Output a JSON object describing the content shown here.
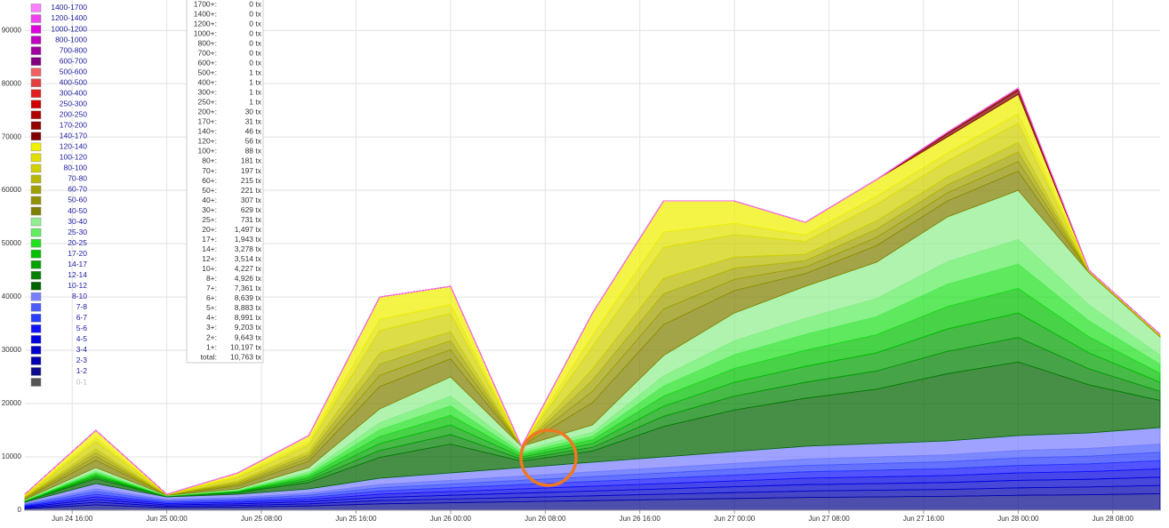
{
  "chart_data": {
    "type": "stacked_area",
    "x": [
      "Jun 24 12:00",
      "Jun 24 18:00",
      "Jun 25 00:00",
      "Jun 25 06:00",
      "Jun 25 12:00",
      "Jun 25 18:00",
      "Jun 26 00:00",
      "Jun 26 06:00",
      "Jun 26 12:00",
      "Jun 26 18:00",
      "Jun 27 00:00",
      "Jun 27 06:00",
      "Jun 27 12:00",
      "Jun 27 18:00",
      "Jun 28 00:00",
      "Jun 28 06:00",
      "Jun 28 12:00"
    ],
    "xlim": [
      "Jun 24 12:00",
      "Jun 28 12:00"
    ],
    "xticks": [
      "Jun 24 16:00",
      "Jun 25 00:00",
      "Jun 25 08:00",
      "Jun 25 16:00",
      "Jun 26 00:00",
      "Jun 26 08:00",
      "Jun 26 16:00",
      "Jun 27 00:00",
      "Jun 27 08:00",
      "Jun 27 16:00",
      "Jun 28 00:00",
      "Jun 28 08:00"
    ],
    "ylim": [
      0,
      95700
    ],
    "yticks": [
      0,
      10000,
      20000,
      30000,
      40000,
      50000,
      60000,
      70000,
      80000,
      90000
    ],
    "grid": true,
    "series": [
      {
        "name": "0-1",
        "color": "#555555",
        "values": [
          0,
          0,
          0,
          0,
          0,
          0,
          0,
          0,
          0,
          0,
          0,
          0,
          0,
          0,
          0,
          0,
          0
        ]
      },
      {
        "name": "1-2",
        "color": "#0a0a8c",
        "values": [
          300,
          1000,
          500,
          600,
          800,
          1200,
          1400,
          1600,
          1800,
          2000,
          2200,
          2400,
          2500,
          2600,
          2800,
          2900,
          3100
        ]
      },
      {
        "name": "2-3",
        "color": "#0000b0",
        "values": [
          150,
          500,
          250,
          300,
          400,
          600,
          700,
          800,
          900,
          1000,
          1100,
          1200,
          1250,
          1300,
          1400,
          1450,
          1550
        ]
      },
      {
        "name": "3-4",
        "color": "#0000cc",
        "values": [
          150,
          500,
          250,
          300,
          400,
          600,
          700,
          800,
          900,
          1000,
          1100,
          1200,
          1250,
          1300,
          1400,
          1450,
          1550
        ]
      },
      {
        "name": "4-5",
        "color": "#0000e0",
        "values": [
          150,
          500,
          250,
          300,
          400,
          600,
          700,
          800,
          900,
          1000,
          1100,
          1200,
          1250,
          1300,
          1400,
          1450,
          1550
        ]
      },
      {
        "name": "5-6",
        "color": "#1010ff",
        "values": [
          150,
          500,
          250,
          300,
          400,
          600,
          700,
          800,
          900,
          1000,
          1100,
          1200,
          1250,
          1300,
          1400,
          1450,
          1550
        ]
      },
      {
        "name": "6-7",
        "color": "#2a3cff",
        "values": [
          150,
          500,
          250,
          300,
          400,
          600,
          700,
          800,
          900,
          1000,
          1100,
          1200,
          1250,
          1300,
          1400,
          1450,
          1550
        ]
      },
      {
        "name": "7-8",
        "color": "#4a5cff",
        "values": [
          150,
          500,
          250,
          300,
          400,
          600,
          700,
          800,
          900,
          1000,
          1100,
          1200,
          1250,
          1300,
          1400,
          1450,
          1550
        ]
      },
      {
        "name": "8-10",
        "color": "#7a80ff",
        "values": [
          300,
          1000,
          500,
          600,
          800,
          1200,
          1400,
          1600,
          1800,
          2000,
          2200,
          2400,
          2500,
          2600,
          2800,
          2900,
          3100
        ]
      },
      {
        "name": "10-12",
        "color": "#006400",
        "values": [
          150,
          900,
          90,
          300,
          1200,
          3900,
          5400,
          1200,
          2100,
          5700,
          7800,
          9000,
          10200,
          12600,
          13800,
          9000,
          5100
        ]
      },
      {
        "name": "12-14",
        "color": "#008000",
        "values": [
          50,
          300,
          30,
          100,
          400,
          1300,
          1800,
          400,
          700,
          1900,
          2600,
          3000,
          3400,
          4200,
          4600,
          3000,
          1700
        ]
      },
      {
        "name": "14-17",
        "color": "#00a000",
        "values": [
          50,
          300,
          30,
          100,
          400,
          1300,
          1800,
          400,
          700,
          1900,
          2600,
          3000,
          3400,
          4200,
          4600,
          3000,
          1700
        ]
      },
      {
        "name": "17-20",
        "color": "#00c000",
        "values": [
          50,
          300,
          30,
          100,
          400,
          1300,
          1800,
          400,
          700,
          1900,
          2600,
          3000,
          3400,
          4200,
          4600,
          3000,
          1700
        ]
      },
      {
        "name": "20-25",
        "color": "#20e020",
        "values": [
          50,
          300,
          30,
          100,
          400,
          1300,
          1800,
          400,
          700,
          1900,
          2600,
          3000,
          3400,
          4200,
          4600,
          3000,
          1700
        ]
      },
      {
        "name": "25-30",
        "color": "#60ee60",
        "values": [
          50,
          300,
          30,
          100,
          400,
          1300,
          1800,
          400,
          700,
          1900,
          2600,
          3000,
          3400,
          4200,
          4600,
          3000,
          1700
        ]
      },
      {
        "name": "30-40",
        "color": "#90ee90",
        "values": [
          100,
          600,
          60,
          200,
          800,
          2600,
          3600,
          800,
          1400,
          3800,
          5200,
          6000,
          6800,
          8400,
          9200,
          6000,
          3400
        ]
      },
      {
        "name": "40-50",
        "color": "#808000",
        "values": [
          200,
          1400,
          40,
          600,
          1200,
          4200,
          3400,
          0,
          4200,
          5800,
          4200,
          2400,
          3100,
          3000,
          3600,
          100,
          100
        ]
      },
      {
        "name": "50-60",
        "color": "#909000",
        "values": [
          100,
          700,
          20,
          300,
          600,
          2100,
          1700,
          0,
          2100,
          2900,
          2100,
          1200,
          1550,
          1500,
          1800,
          50,
          50
        ]
      },
      {
        "name": "60-70",
        "color": "#a0a000",
        "values": [
          100,
          700,
          20,
          300,
          600,
          2100,
          1700,
          0,
          2100,
          2900,
          2100,
          1200,
          1550,
          1500,
          1800,
          50,
          50
        ]
      },
      {
        "name": "70-80",
        "color": "#b8b800",
        "values": [
          100,
          700,
          20,
          300,
          600,
          2100,
          1700,
          0,
          2100,
          2900,
          2100,
          1200,
          1550,
          1500,
          1800,
          50,
          50
        ]
      },
      {
        "name": "80-100",
        "color": "#d0d000",
        "values": [
          200,
          1400,
          40,
          600,
          1200,
          4200,
          3400,
          0,
          4200,
          5800,
          4200,
          2400,
          3100,
          3000,
          3600,
          100,
          100
        ]
      },
      {
        "name": "100-120",
        "color": "#e0e000",
        "values": [
          100,
          700,
          20,
          300,
          600,
          2100,
          1700,
          0,
          2100,
          2900,
          2100,
          1200,
          1550,
          1500,
          1800,
          50,
          50
        ]
      },
      {
        "name": "120-140",
        "color": "#f0f000",
        "values": [
          200,
          1400,
          40,
          600,
          1200,
          4200,
          3400,
          0,
          4200,
          5800,
          4200,
          2400,
          3100,
          3000,
          3600,
          100,
          100
        ]
      },
      {
        "name": "140-170",
        "color": "#800000",
        "values": [
          0,
          0,
          0,
          0,
          0,
          0,
          0,
          0,
          0,
          0,
          0,
          0,
          0,
          600,
          800,
          0,
          0
        ]
      },
      {
        "name": "170-200",
        "color": "#900000",
        "values": [
          0,
          0,
          0,
          0,
          0,
          0,
          0,
          0,
          0,
          0,
          0,
          0,
          0,
          300,
          400,
          0,
          0
        ]
      },
      {
        "name": "200-250",
        "color": "#b00000",
        "values": [
          0,
          0,
          0,
          0,
          0,
          0,
          0,
          0,
          0,
          0,
          0,
          0,
          0,
          0,
          0,
          0,
          0
        ]
      },
      {
        "name": "250-300",
        "color": "#d00000",
        "values": [
          0,
          0,
          0,
          0,
          0,
          0,
          0,
          0,
          0,
          0,
          0,
          0,
          0,
          0,
          0,
          0,
          0
        ]
      },
      {
        "name": "300-400",
        "color": "#e02020",
        "values": [
          0,
          0,
          0,
          0,
          0,
          0,
          0,
          0,
          0,
          0,
          0,
          0,
          0,
          0,
          0,
          0,
          0
        ]
      },
      {
        "name": "400-500",
        "color": "#e04040",
        "values": [
          0,
          0,
          0,
          0,
          0,
          0,
          0,
          0,
          0,
          0,
          0,
          0,
          0,
          0,
          0,
          0,
          0
        ]
      },
      {
        "name": "500-600",
        "color": "#f06060",
        "values": [
          0,
          0,
          0,
          0,
          0,
          0,
          0,
          0,
          0,
          0,
          0,
          0,
          0,
          0,
          0,
          0,
          0
        ]
      },
      {
        "name": "600-700",
        "color": "#800080",
        "values": [
          0,
          0,
          0,
          0,
          0,
          0,
          0,
          0,
          0,
          0,
          0,
          0,
          0,
          0,
          0,
          0,
          0
        ]
      },
      {
        "name": "700-800",
        "color": "#a000a0",
        "values": [
          0,
          0,
          0,
          0,
          0,
          0,
          0,
          0,
          0,
          0,
          0,
          0,
          0,
          0,
          0,
          0,
          0
        ]
      },
      {
        "name": "800-1000",
        "color": "#c000c0",
        "values": [
          0,
          0,
          0,
          0,
          0,
          0,
          0,
          0,
          0,
          0,
          0,
          0,
          0,
          0,
          0,
          0,
          0
        ]
      },
      {
        "name": "1000-1200",
        "color": "#e000e0",
        "values": [
          0,
          0,
          0,
          0,
          0,
          0,
          0,
          0,
          0,
          0,
          0,
          0,
          0,
          0,
          0,
          0,
          0
        ]
      },
      {
        "name": "1200-1400",
        "color": "#f040f0",
        "values": [
          0,
          0,
          0,
          0,
          0,
          0,
          0,
          0,
          0,
          0,
          0,
          0,
          0,
          0,
          0,
          0,
          0
        ]
      },
      {
        "name": "1400-1700",
        "color": "#ff80ff",
        "values": [
          0,
          0,
          0,
          0,
          0,
          0,
          0,
          0,
          0,
          0,
          0,
          0,
          0,
          0,
          0,
          0,
          0
        ]
      }
    ]
  },
  "tooltip": {
    "rows": [
      {
        "label": "1700+:",
        "value": "0 tx"
      },
      {
        "label": "1400+:",
        "value": "0 tx"
      },
      {
        "label": "1200+:",
        "value": "0 tx"
      },
      {
        "label": "1000+:",
        "value": "0 tx"
      },
      {
        "label": "800+:",
        "value": "0 tx"
      },
      {
        "label": "700+:",
        "value": "0 tx"
      },
      {
        "label": "600+:",
        "value": "0 tx"
      },
      {
        "label": "500+:",
        "value": "1 tx"
      },
      {
        "label": "400+:",
        "value": "1 tx"
      },
      {
        "label": "300+:",
        "value": "1 tx"
      },
      {
        "label": "250+:",
        "value": "1 tx"
      },
      {
        "label": "200+:",
        "value": "30 tx"
      },
      {
        "label": "170+:",
        "value": "31 tx"
      },
      {
        "label": "140+:",
        "value": "46 tx"
      },
      {
        "label": "120+:",
        "value": "56 tx"
      },
      {
        "label": "100+:",
        "value": "88 tx"
      },
      {
        "label": "80+:",
        "value": "181 tx"
      },
      {
        "label": "70+:",
        "value": "197 tx"
      },
      {
        "label": "60+:",
        "value": "215 tx"
      },
      {
        "label": "50+:",
        "value": "221 tx"
      },
      {
        "label": "40+:",
        "value": "307 tx"
      },
      {
        "label": "30+:",
        "value": "629 tx"
      },
      {
        "label": "25+:",
        "value": "731 tx"
      },
      {
        "label": "20+:",
        "value": "1,497 tx"
      },
      {
        "label": "17+:",
        "value": "1,943 tx"
      },
      {
        "label": "14+:",
        "value": "3,278 tx"
      },
      {
        "label": "12+:",
        "value": "3,514 tx"
      },
      {
        "label": "10+:",
        "value": "4,227 tx"
      },
      {
        "label": "8+:",
        "value": "4,926 tx"
      },
      {
        "label": "7+:",
        "value": "7,361 tx"
      },
      {
        "label": "6+:",
        "value": "8,639 tx"
      },
      {
        "label": "5+:",
        "value": "8,883 tx"
      },
      {
        "label": "4+:",
        "value": "8,991 tx"
      },
      {
        "label": "3+:",
        "value": "9,203 tx"
      },
      {
        "label": "2+:",
        "value": "9,643 tx"
      },
      {
        "label": "1+:",
        "value": "10,197 tx"
      },
      {
        "label": "total:",
        "value": "10,763 tx"
      }
    ]
  }
}
